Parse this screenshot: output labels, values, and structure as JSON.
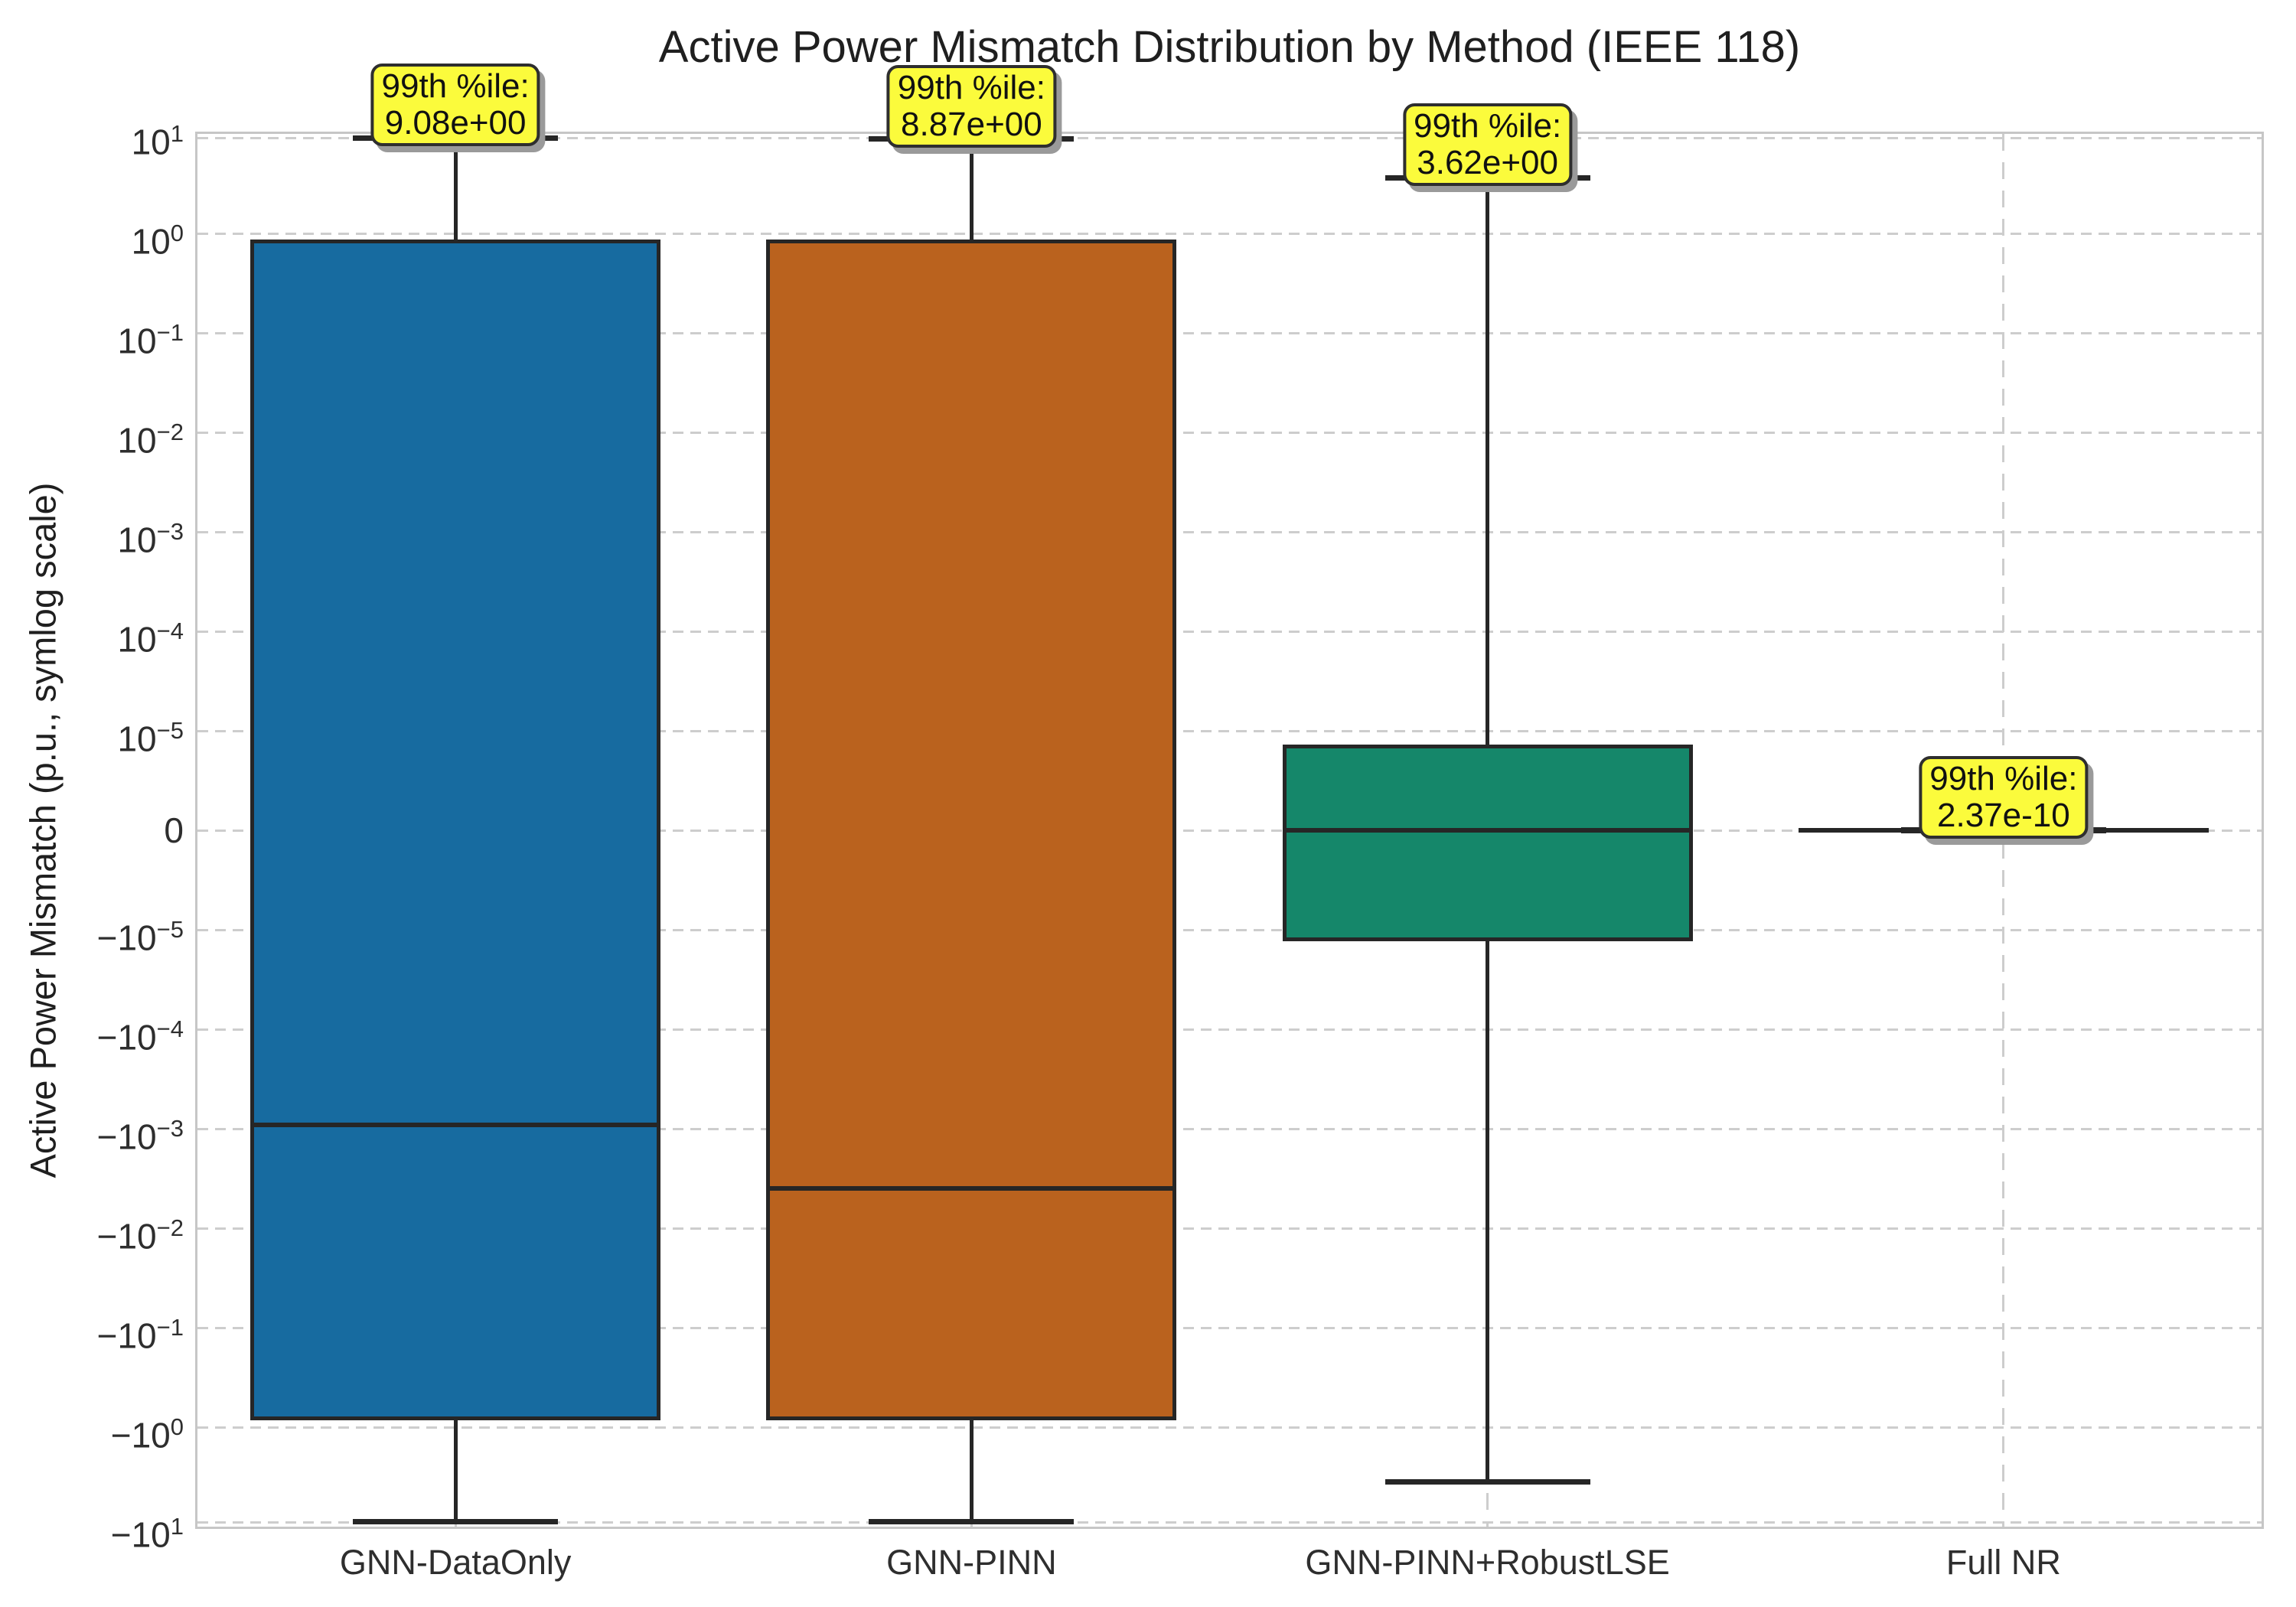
{
  "figure": {
    "background": "#ffffff",
    "text_color": "#262626",
    "grid_color": "#cdcdcd",
    "spine_color": "#c6c6c6",
    "box_edge_color": "#262626",
    "annotation_style": {
      "fill": "#fbfb3c",
      "border": "#2e2e2e",
      "shadow": "#9a9a9a"
    }
  },
  "chart_data": {
    "type": "box",
    "title": "Active Power Mismatch Distribution by Method (IEEE 118)",
    "ylabel": "Active Power Mismatch (p.u., symlog scale)",
    "xlabel": "",
    "grid": true,
    "legend": "none",
    "yscale": {
      "type": "symlog",
      "linthresh": 1e-05,
      "ymin": -10,
      "ymax": 10
    },
    "categories": [
      "GNN-DataOnly",
      "GNN-PINN",
      "GNN-PINN+RobustLSE",
      "Full NR"
    ],
    "yticks": [
      {
        "value": 10,
        "label": "10^1"
      },
      {
        "value": 1,
        "label": "10^0"
      },
      {
        "value": 0.1,
        "label": "10^−1"
      },
      {
        "value": 0.01,
        "label": "10^−2"
      },
      {
        "value": 0.001,
        "label": "10^−3"
      },
      {
        "value": 0.0001,
        "label": "10^−4"
      },
      {
        "value": 1e-05,
        "label": "10^−5"
      },
      {
        "value": 0,
        "label": "0"
      },
      {
        "value": -1e-05,
        "label": "−10^−5"
      },
      {
        "value": -0.0001,
        "label": "−10^−4"
      },
      {
        "value": -0.001,
        "label": "−10^−3"
      },
      {
        "value": -0.01,
        "label": "−10^−2"
      },
      {
        "value": -0.1,
        "label": "−10^−1"
      },
      {
        "value": -1,
        "label": "−10^0"
      },
      {
        "value": -10,
        "label": "−10^1"
      }
    ],
    "annotation_prefix": "99th %ile:",
    "series": [
      {
        "label": "GNN-DataOnly",
        "color": "#176ba0",
        "whisker_low": -8.9,
        "q1": -0.85,
        "median": -0.00092,
        "q3": 0.87,
        "whisker_high": 9.08,
        "p99": 9.08,
        "p99_label": "9.08e+00"
      },
      {
        "label": "GNN-PINN",
        "color": "#ba621e",
        "whisker_low": -8.9,
        "q1": -0.85,
        "median": -0.004,
        "q3": 0.87,
        "whisker_high": 8.87,
        "p99": 8.87,
        "p99_label": "8.87e+00"
      },
      {
        "label": "GNN-PINN+RobustLSE",
        "color": "#15876a",
        "whisker_low": -3.55,
        "q1": -1.3e-05,
        "median": 0,
        "q3": 8.6e-06,
        "whisker_high": 3.62,
        "p99": 3.62,
        "p99_label": "3.62e+00"
      },
      {
        "label": "Full NR",
        "color": "#262626",
        "whisker_low": -2.4e-10,
        "q1": -1e-10,
        "median": 0,
        "q3": 1e-10,
        "whisker_high": 2.37e-10,
        "p99": 2.37e-10,
        "p99_label": "2.37e-10"
      }
    ]
  }
}
